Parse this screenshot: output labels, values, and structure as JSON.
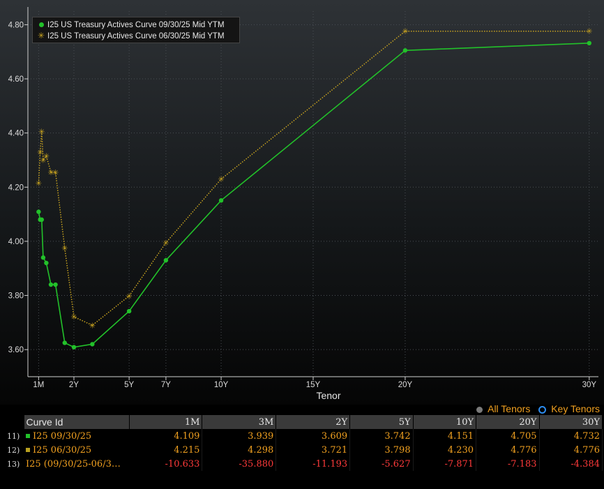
{
  "chart_data": {
    "type": "line",
    "xlabel": "Tenor",
    "x_ticks": [
      {
        "label": "1M",
        "t": 0.0833
      },
      {
        "label": "2Y",
        "t": 2
      },
      {
        "label": "5Y",
        "t": 5
      },
      {
        "label": "7Y",
        "t": 7
      },
      {
        "label": "10Y",
        "t": 10
      },
      {
        "label": "15Y",
        "t": 15
      },
      {
        "label": "20Y",
        "t": 20
      },
      {
        "label": "30Y",
        "t": 30
      }
    ],
    "y_ticks": [
      "3.60",
      "3.80",
      "4.00",
      "4.20",
      "4.40",
      "4.60",
      "4.80"
    ],
    "ylim": [
      3.5,
      4.85
    ],
    "grid": true,
    "legend_position": "top-left",
    "series": [
      {
        "name": "I25 US Treasury Actives Curve 09/30/25 Mid YTM",
        "color": "#22c12a",
        "style": "solid",
        "marker": "dot",
        "points": [
          [
            0.0833,
            4.109
          ],
          [
            0.1667,
            4.08
          ],
          [
            0.25,
            4.08
          ],
          [
            0.33,
            3.94
          ],
          [
            0.5,
            3.92
          ],
          [
            0.75,
            3.84
          ],
          [
            1,
            3.84
          ],
          [
            1.5,
            3.625
          ],
          [
            2,
            3.609
          ],
          [
            3,
            3.62
          ],
          [
            5,
            3.742
          ],
          [
            7,
            3.93
          ],
          [
            10,
            4.151
          ],
          [
            20,
            4.705
          ],
          [
            30,
            4.732
          ]
        ]
      },
      {
        "name": "I25 US Treasury Actives Curve 06/30/25 Mid YTM",
        "color": "#c9a420",
        "style": "dotted",
        "marker": "star",
        "points": [
          [
            0.0833,
            4.215
          ],
          [
            0.1667,
            4.33
          ],
          [
            0.25,
            4.405
          ],
          [
            0.33,
            4.3
          ],
          [
            0.5,
            4.315
          ],
          [
            0.75,
            4.255
          ],
          [
            1,
            4.255
          ],
          [
            1.5,
            3.975
          ],
          [
            2,
            3.721
          ],
          [
            3,
            3.69
          ],
          [
            5,
            3.798
          ],
          [
            7,
            3.995
          ],
          [
            10,
            4.23
          ],
          [
            20,
            4.776
          ],
          [
            30,
            4.776
          ]
        ]
      }
    ]
  },
  "toggles": {
    "all_tenors": "All Tenors",
    "key_tenors": "Key Tenors"
  },
  "table": {
    "columns": [
      "Curve Id",
      "1M",
      "3M",
      "2Y",
      "5Y",
      "10Y",
      "20Y",
      "30Y"
    ],
    "rows": [
      {
        "idx": "11)",
        "swatch": "#22c12a",
        "id": "I25 09/30/25",
        "values": [
          "4.109",
          "3.939",
          "3.609",
          "3.742",
          "4.151",
          "4.705",
          "4.732"
        ],
        "negative": false
      },
      {
        "idx": "12)",
        "swatch": "#b8a020",
        "id": "I25 06/30/25",
        "values": [
          "4.215",
          "4.298",
          "3.721",
          "3.798",
          "4.230",
          "4.776",
          "4.776"
        ],
        "negative": false
      },
      {
        "idx": "13)",
        "swatch": "",
        "id": "I25 (09/30/25-06/3…",
        "values": [
          "-10.633",
          "-35.880",
          "-11.193",
          "-5.627",
          "-7.871",
          "-7.183",
          "-4.384"
        ],
        "negative": true
      }
    ]
  }
}
